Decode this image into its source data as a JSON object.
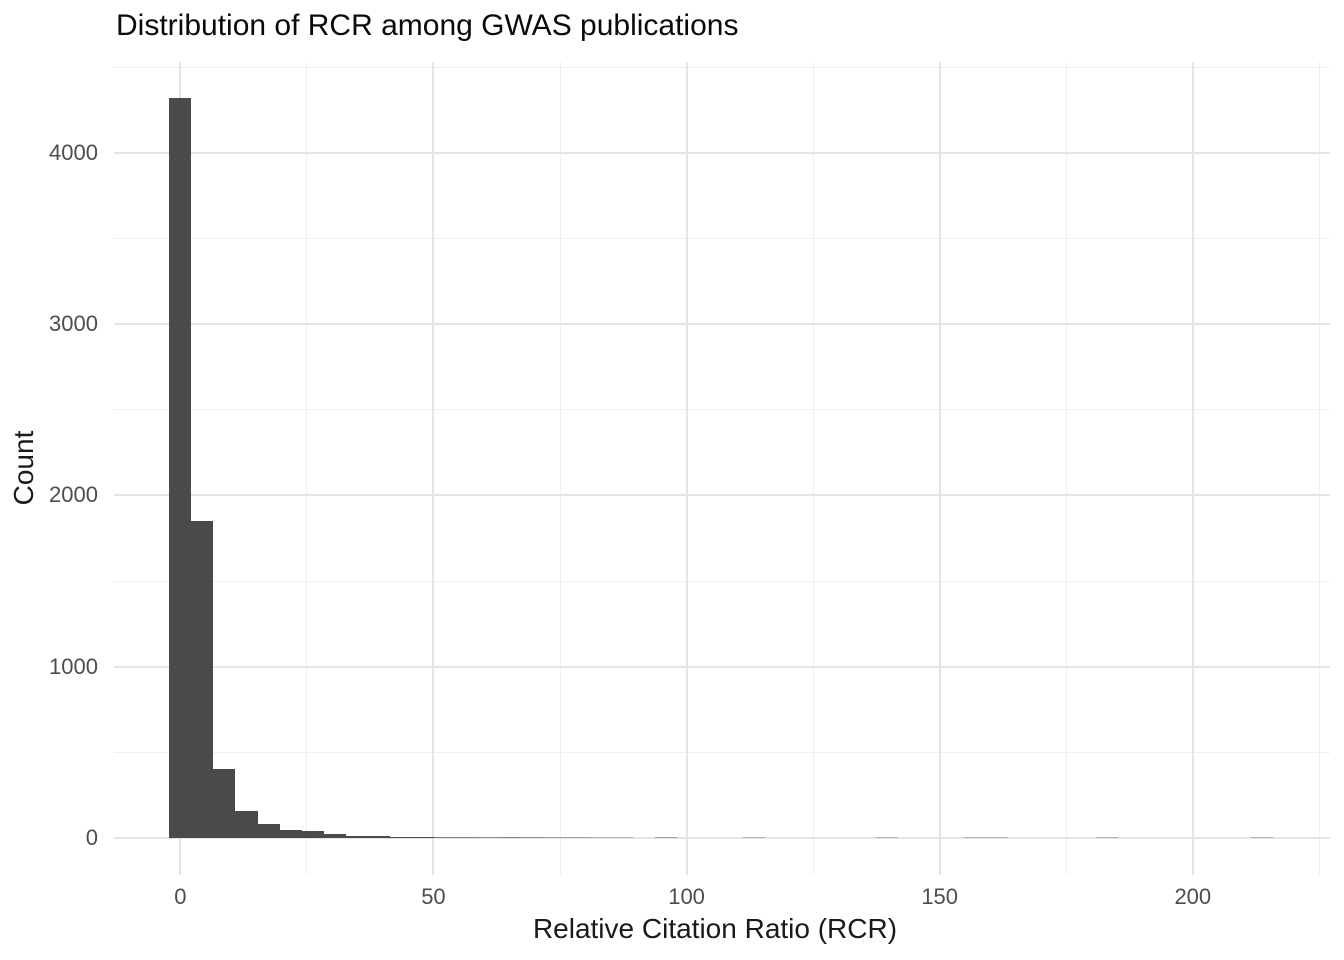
{
  "page": {
    "background": "#ffffff"
  },
  "chart_data": {
    "type": "bar",
    "variant": "histogram",
    "title": "Distribution of RCR among GWAS publications",
    "xlabel": "Relative Citation Ratio (RCR)",
    "ylabel": "Count",
    "x_ticks": [
      0,
      50,
      100,
      150,
      200
    ],
    "x_minor_ticks": [
      25,
      75,
      125,
      175,
      225
    ],
    "y_ticks": [
      0,
      1000,
      2000,
      3000,
      4000
    ],
    "y_minor_ticks": [
      500,
      1500,
      2500,
      3500,
      4500
    ],
    "xlim": [
      -13.1,
      227.1
    ],
    "ylim": [
      -216,
      4531
    ],
    "grid": "on",
    "legend": "none",
    "bins": {
      "start": -2.18,
      "width": 4.36,
      "counts": [
        4320,
        1852,
        403,
        160,
        82,
        45,
        40,
        21,
        12,
        9,
        7,
        6,
        4,
        4,
        3,
        4,
        3,
        2,
        2,
        1,
        1,
        0,
        2,
        0,
        0,
        0,
        1,
        0,
        0,
        0,
        0,
        0,
        1,
        0,
        0,
        0,
        1,
        1,
        0,
        0,
        0,
        0,
        1,
        0,
        0,
        0,
        0,
        0,
        0,
        1
      ]
    },
    "colors": {
      "bar": "#4a4a4a",
      "grid_major": "#e4e4e4",
      "grid_minor": "#efefef",
      "background": "#ffffff",
      "tick_text": "#4d4d4d",
      "title_text": "#0a0a0a"
    }
  }
}
